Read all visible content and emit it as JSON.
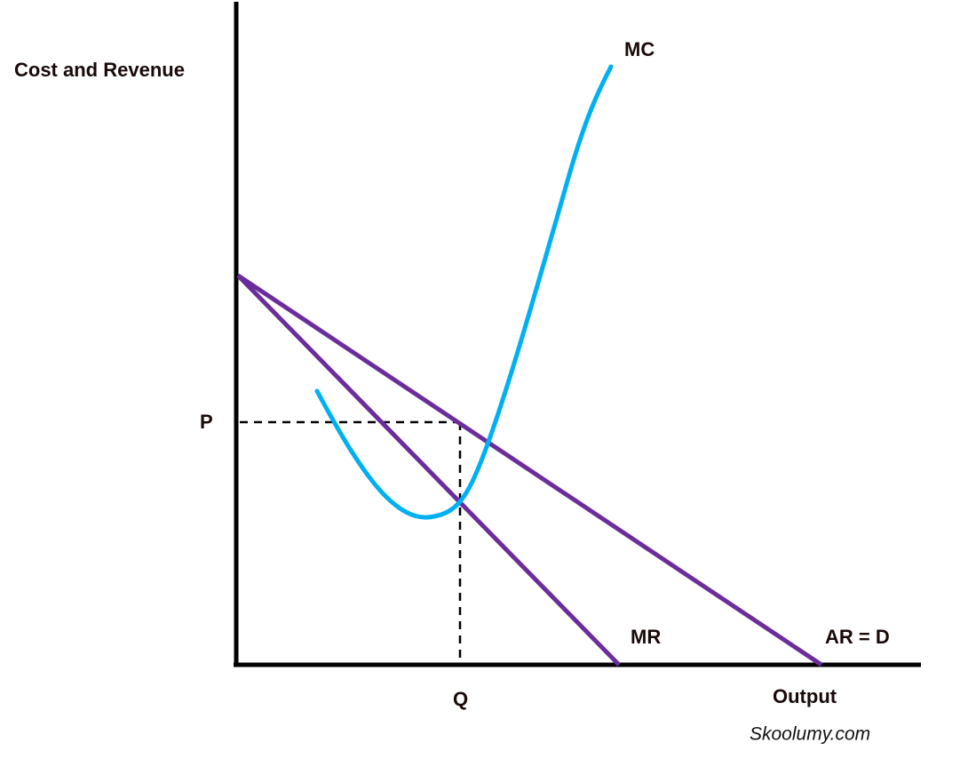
{
  "axes": {
    "y_label": "Cost and Revenue",
    "x_label": "Output"
  },
  "curves": {
    "mc": "MC",
    "mr": "MR",
    "ar": "AR = D"
  },
  "points": {
    "price": "P",
    "quantity": "Q"
  },
  "watermark": "Skoolumy.com"
}
